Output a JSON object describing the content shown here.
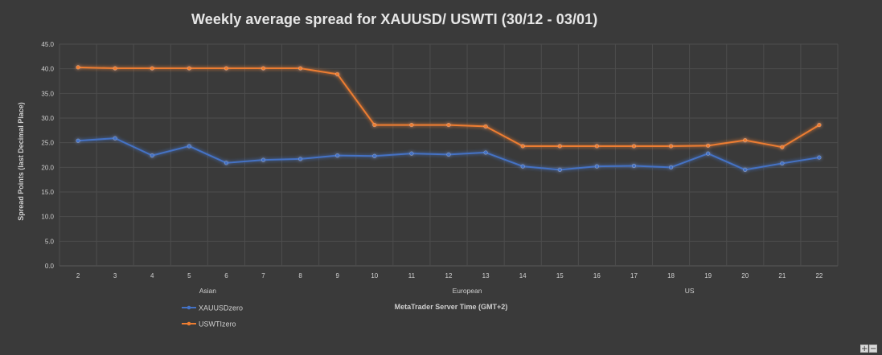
{
  "chart_data": {
    "type": "line",
    "title": "Weekly average spread for XAUUSD/ USWTI (30/12 - 03/01)",
    "xlabel": "MetaTrader Server Time (GMT+2)",
    "ylabel": "Spread Points  (last Decimal Place)",
    "categories": [
      "2",
      "3",
      "4",
      "5",
      "6",
      "7",
      "8",
      "9",
      "10",
      "11",
      "12",
      "13",
      "14",
      "15",
      "16",
      "17",
      "18",
      "19",
      "20",
      "21",
      "22"
    ],
    "ylim": [
      0,
      45
    ],
    "y_ticks": [
      "0.0",
      "5.0",
      "10.0",
      "15.0",
      "20.0",
      "25.0",
      "30.0",
      "35.0",
      "40.0",
      "45.0"
    ],
    "session_groups": [
      {
        "label": "Asian",
        "center_category": "6"
      },
      {
        "label": "European",
        "center_category": "13"
      },
      {
        "label": "US",
        "center_category": "19"
      }
    ],
    "grid": true,
    "legend_position": "bottom-left",
    "series": [
      {
        "name": "XAUUSDzero",
        "color": "#4472c4",
        "values": [
          25.4,
          25.9,
          22.4,
          24.3,
          20.9,
          21.5,
          21.7,
          22.4,
          22.3,
          22.8,
          22.6,
          23.0,
          20.2,
          19.5,
          20.2,
          20.3,
          20.0,
          22.8,
          19.5,
          20.8,
          22.0
        ]
      },
      {
        "name": "USWTIzero",
        "color": "#ed7d31",
        "values": [
          40.3,
          40.1,
          40.1,
          40.1,
          40.1,
          40.1,
          40.1,
          38.9,
          28.6,
          28.6,
          28.6,
          28.3,
          24.3,
          24.3,
          24.3,
          24.3,
          24.3,
          24.4,
          25.5,
          24.1,
          28.6
        ]
      }
    ]
  },
  "zoom": {
    "plus": "+",
    "minus": "−"
  }
}
